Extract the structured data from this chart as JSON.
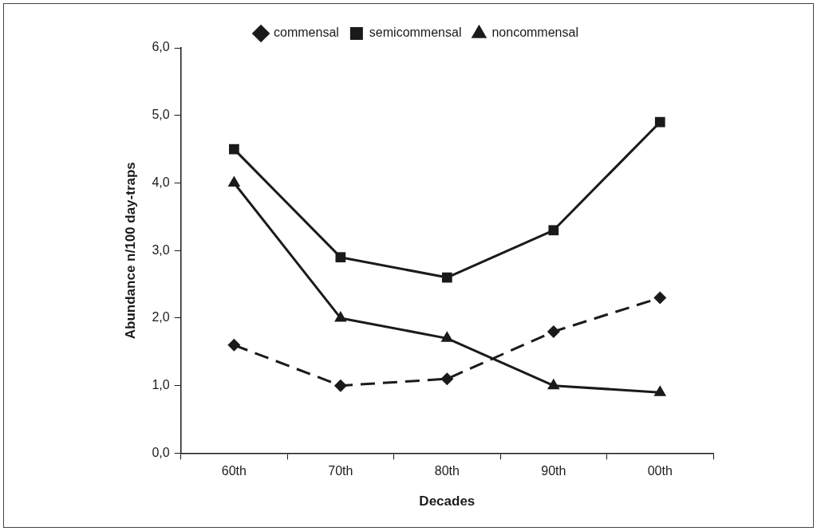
{
  "chart_data": {
    "type": "line",
    "xlabel": "Decades",
    "ylabel": "Abundance n/100 day-traps",
    "categories": [
      "60th",
      "70th",
      "80th",
      "90th",
      "00th"
    ],
    "series": [
      {
        "name": "commensal",
        "color": "#1a1a1a",
        "values": [
          1.6,
          1.0,
          1.1,
          1.8,
          2.3
        ],
        "marker": "diamond",
        "line_style": "dashed"
      },
      {
        "name": "semicommensal",
        "color": "#1a1a1a",
        "values": [
          4.5,
          2.9,
          2.6,
          3.3,
          4.9
        ],
        "marker": "square",
        "line_style": "solid"
      },
      {
        "name": "noncommensal",
        "color": "#1a1a1a",
        "values": [
          4.0,
          2.0,
          1.7,
          1.0,
          0.9
        ],
        "marker": "triangle",
        "line_style": "solid"
      }
    ],
    "ylim": [
      0,
      6
    ],
    "yticks": [
      {
        "value": 0,
        "label": "0,0"
      },
      {
        "value": 1,
        "label": "1,0"
      },
      {
        "value": 2,
        "label": "2,0"
      },
      {
        "value": 3,
        "label": "3,0"
      },
      {
        "value": 4,
        "label": "4,0"
      },
      {
        "value": 5,
        "label": "5,0"
      },
      {
        "value": 6,
        "label": "6,0"
      }
    ],
    "grid": false,
    "legend": "top"
  }
}
